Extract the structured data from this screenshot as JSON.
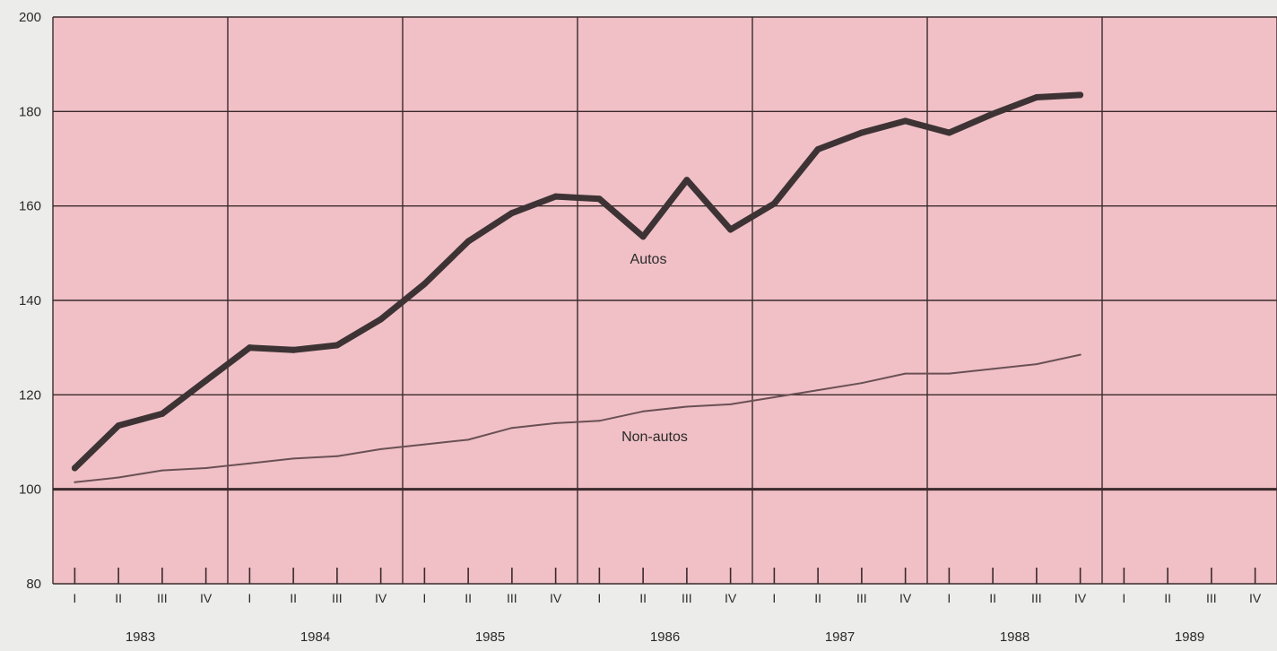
{
  "chart_data": {
    "type": "line",
    "title": "",
    "xlabel": "",
    "ylabel": "",
    "ylim": [
      80,
      200
    ],
    "yticks": [
      80,
      100,
      120,
      140,
      160,
      180,
      200
    ],
    "grid": true,
    "colors": {
      "background": "#f0c0c6",
      "grid": "#3a2a2c",
      "autos": "#3d3335",
      "nonautos": "#6a5054"
    },
    "quarter_labels": [
      "I",
      "II",
      "III",
      "IV"
    ],
    "years": [
      "1983",
      "1984",
      "1985",
      "1986",
      "1987",
      "1988",
      "1989"
    ],
    "x_quarters": 28,
    "series": [
      {
        "name": "Autos",
        "values": [
          104.5,
          113.5,
          116,
          123,
          130,
          129.5,
          130.5,
          136,
          143.5,
          152.5,
          158.5,
          162,
          161.5,
          153.5,
          165.5,
          155,
          160.5,
          172,
          175.5,
          178,
          175.5,
          179.5,
          183,
          183.5
        ]
      },
      {
        "name": "Non-autos",
        "values": [
          101.5,
          102.5,
          104,
          104.5,
          105.5,
          106.5,
          107,
          108.5,
          109.5,
          110.5,
          113,
          114,
          114.5,
          116.5,
          117.5,
          118,
          119.5,
          121,
          122.5,
          124.5,
          124.5,
          125.5,
          126.5,
          128.5
        ]
      }
    ]
  }
}
